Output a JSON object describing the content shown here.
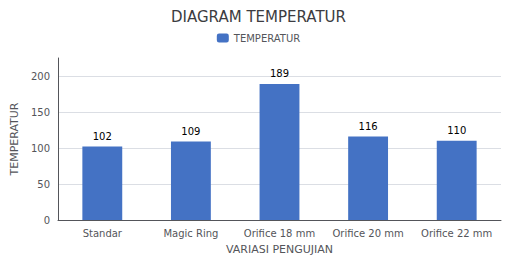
{
  "chart_data": {
    "type": "bar",
    "title": "DIAGRAM TEMPERATUR",
    "xlabel": "VARIASI PENGUJIAN",
    "ylabel": "TEMPERATUR",
    "categories": [
      "Standar",
      "Magic Ring",
      "Orifice 18 mm",
      "Orifice 20 mm",
      "Orifice 22 mm"
    ],
    "series": [
      {
        "name": "TEMPERATUR",
        "color": "#4472C4",
        "values": [
          102,
          109,
          189,
          116,
          110
        ]
      }
    ],
    "ylim": [
      0,
      225
    ],
    "yticks": [
      0,
      50,
      100,
      150,
      200
    ],
    "grid": true,
    "legend": "top",
    "data_labels": true
  }
}
